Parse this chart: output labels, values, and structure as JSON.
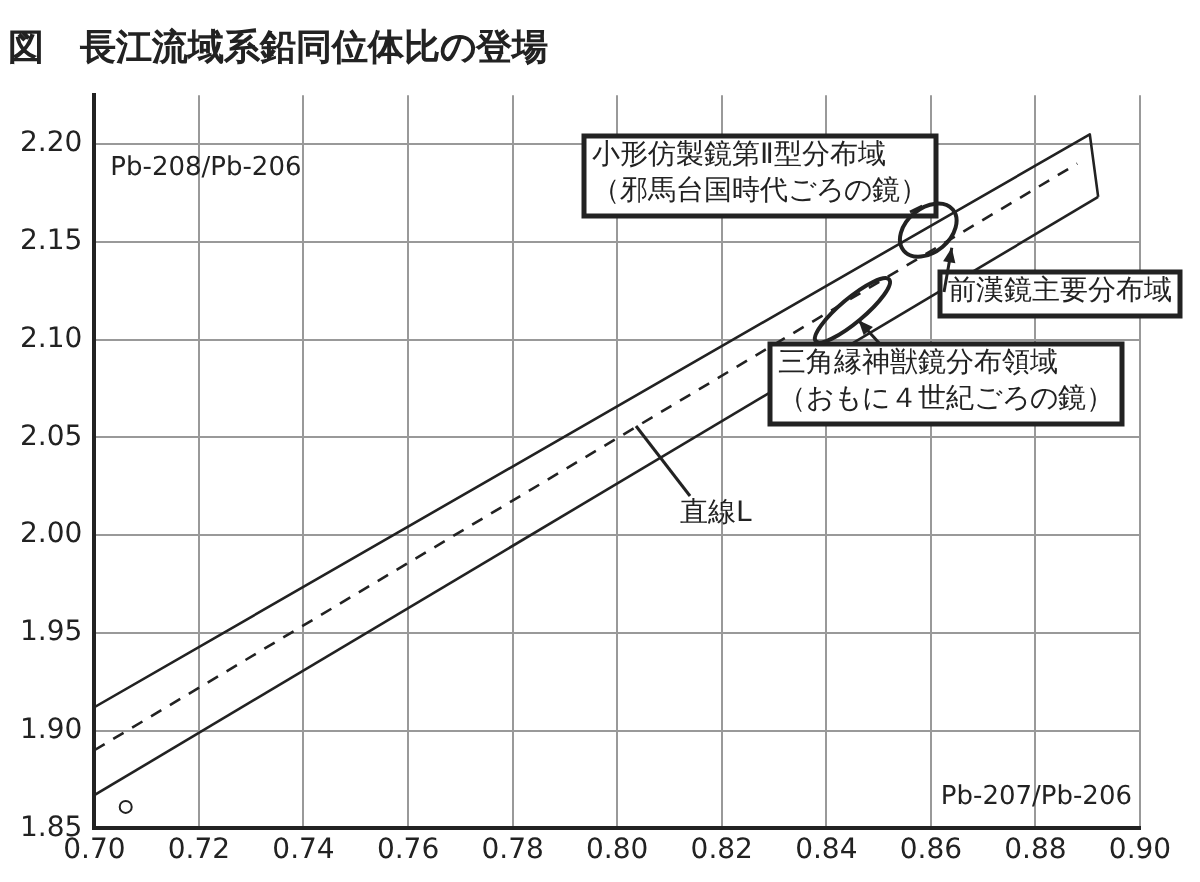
{
  "chart_data": {
    "type": "line",
    "title": "図　長江流域系鉛同位体比の登場",
    "xlabel": "Pb-207/Pb-206",
    "ylabel": "Pb-208/Pb-206",
    "xlim": [
      0.7,
      0.9
    ],
    "xticks": [
      {
        "value": 0.7,
        "label": "0.70"
      },
      {
        "value": 0.72,
        "label": "0.72"
      },
      {
        "value": 0.74,
        "label": "0.74"
      },
      {
        "value": 0.76,
        "label": "0.76"
      },
      {
        "value": 0.78,
        "label": "0.78"
      },
      {
        "value": 0.8,
        "label": "0.80"
      },
      {
        "value": 0.82,
        "label": "0.82"
      },
      {
        "value": 0.84,
        "label": "0.84"
      },
      {
        "value": 0.86,
        "label": "0.86"
      },
      {
        "value": 0.88,
        "label": "0.88"
      },
      {
        "value": 0.9,
        "label": "0.90"
      }
    ],
    "ylim": [
      1.85,
      2.225
    ],
    "yticks": [
      {
        "value": 1.85,
        "label": "1.85"
      },
      {
        "value": 1.9,
        "label": "1.90"
      },
      {
        "value": 1.95,
        "label": "1.95"
      },
      {
        "value": 2.0,
        "label": "2.00"
      },
      {
        "value": 2.05,
        "label": "2.05"
      },
      {
        "value": 2.1,
        "label": "2.10"
      },
      {
        "value": 2.15,
        "label": "2.15"
      },
      {
        "value": 2.2,
        "label": "2.20"
      }
    ],
    "grid": true,
    "legend": false,
    "series": [
      {
        "color": "#222222",
        "line_style": "solid",
        "marker": "none",
        "x": [
          0.7,
          0.8904,
          0.892
        ],
        "values": [
          1.912,
          2.205,
          2.173
        ]
      },
      {
        "color": "#222222",
        "line_style": "solid",
        "marker": "none",
        "x": [
          0.7,
          0.892
        ],
        "values": [
          1.867,
          2.173
        ]
      },
      {
        "color": "#222222",
        "line_style": "dashed",
        "marker": "none",
        "x": [
          0.7,
          0.888
        ],
        "values": [
          1.89,
          2.19
        ]
      },
      {
        "type": "scatter",
        "color": "#222222",
        "marker": "circle",
        "x": [
          0.706
        ],
        "values": [
          1.861
        ]
      }
    ],
    "annotations": [
      {
        "text": "小形仿製鏡第Ⅱ型分布域（邪馬台国時代ごろの鏡）",
        "x": 0.8595,
        "y": 2.156
      },
      {
        "text": "前漢鏡主要分布域",
        "x": 0.864,
        "y": 2.147
      },
      {
        "text": "三角縁神獣鏡分布領域（おもに４世紀ごろの鏡）",
        "x": 0.845,
        "y": 2.115
      },
      "直線L"
    ]
  }
}
